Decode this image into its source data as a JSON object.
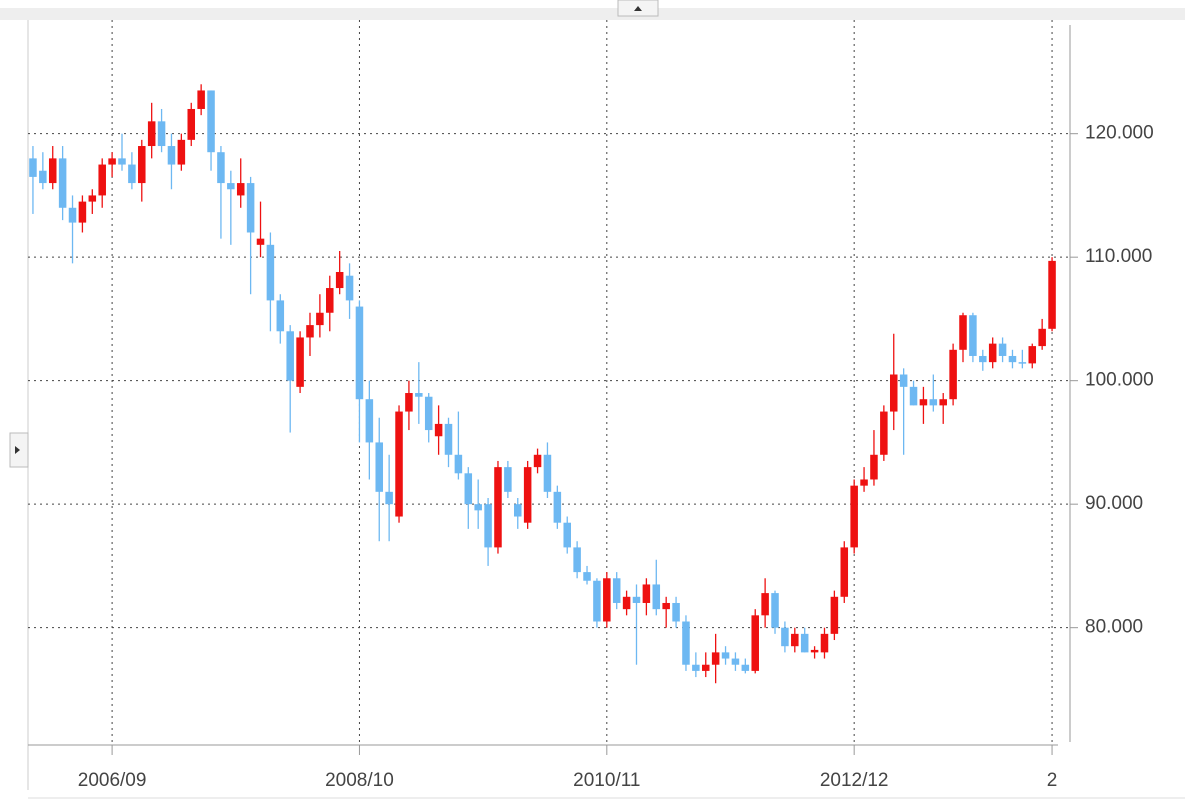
{
  "chart_data": {
    "type": "candlestick",
    "categories": [
      null,
      null,
      null,
      null,
      null,
      null,
      null,
      null,
      "2006/09",
      null,
      null,
      null,
      null,
      null,
      null,
      null,
      null,
      null,
      null,
      null,
      null,
      null,
      null,
      null,
      null,
      null,
      null,
      null,
      null,
      null,
      null,
      null,
      null,
      "2008/10",
      null,
      null,
      null,
      null,
      null,
      null,
      null,
      null,
      null,
      null,
      null,
      null,
      null,
      null,
      null,
      null,
      null,
      null,
      null,
      null,
      null,
      null,
      null,
      null,
      "2010/11",
      null,
      null,
      null,
      null,
      null,
      null,
      null,
      null,
      null,
      null,
      null,
      null,
      null,
      null,
      null,
      null,
      null,
      null,
      null,
      null,
      null,
      null,
      null,
      null,
      "2012/12",
      null,
      null,
      null,
      null,
      null,
      null,
      null,
      null,
      null,
      null,
      null,
      null,
      null,
      null,
      null,
      null,
      null,
      null,
      null,
      "2"
    ],
    "ohlc": [
      [
        118,
        119,
        113.5,
        116.5
      ],
      [
        117,
        118.5,
        115.5,
        116
      ],
      [
        116,
        119,
        115.5,
        118
      ],
      [
        118,
        119,
        113,
        114
      ],
      [
        114,
        115,
        109.5,
        112.8
      ],
      [
        112.8,
        115,
        112,
        114.5
      ],
      [
        114.5,
        115.5,
        113.5,
        115
      ],
      [
        115,
        118,
        114,
        117.5
      ],
      [
        117.5,
        118.5,
        116.5,
        118
      ],
      [
        118,
        120,
        117,
        117.5
      ],
      [
        117.5,
        118.5,
        115.5,
        116
      ],
      [
        116,
        119.5,
        114.5,
        119
      ],
      [
        119,
        122.5,
        118,
        121
      ],
      [
        121,
        122,
        118.5,
        119
      ],
      [
        119,
        120,
        115.5,
        117.5
      ],
      [
        117.5,
        120,
        117,
        119.5
      ],
      [
        119.5,
        122.5,
        119,
        122
      ],
      [
        122,
        124,
        121.5,
        123.5
      ],
      [
        123.5,
        123.5,
        117,
        118.5
      ],
      [
        118.5,
        119,
        111.5,
        116
      ],
      [
        116,
        117,
        111,
        115.5
      ],
      [
        115,
        118,
        114,
        116
      ],
      [
        116,
        116.5,
        107,
        112
      ],
      [
        111,
        114.5,
        110,
        111.5
      ],
      [
        111,
        112,
        104,
        106.5
      ],
      [
        106.5,
        107,
        103,
        104
      ],
      [
        104,
        104.5,
        95.8,
        100
      ],
      [
        99.5,
        104,
        99,
        103.5
      ],
      [
        103.5,
        105.5,
        102,
        104.5
      ],
      [
        104.5,
        107,
        103.5,
        105.5
      ],
      [
        105.5,
        108.5,
        104,
        107.5
      ],
      [
        107.5,
        110.5,
        107,
        108.8
      ],
      [
        108.5,
        109.5,
        105,
        106.5
      ],
      [
        106,
        106.5,
        95,
        98.5
      ],
      [
        98.5,
        100,
        92,
        95
      ],
      [
        95,
        97,
        87,
        91
      ],
      [
        91,
        94,
        87,
        90
      ],
      [
        89,
        98,
        88.5,
        97.5
      ],
      [
        97.5,
        100,
        96,
        99
      ],
      [
        99,
        101.5,
        96.5,
        98.7
      ],
      [
        98.7,
        99,
        95,
        96
      ],
      [
        95.5,
        98,
        94,
        96.5
      ],
      [
        96.5,
        97,
        93,
        94
      ],
      [
        94,
        97.5,
        92,
        92.5
      ],
      [
        92.5,
        93,
        88,
        90
      ],
      [
        90,
        92,
        88,
        89.5
      ],
      [
        90,
        90.5,
        85,
        86.5
      ],
      [
        86.5,
        93.5,
        86,
        93
      ],
      [
        93,
        93.5,
        90.5,
        91
      ],
      [
        90,
        90.5,
        88,
        89
      ],
      [
        88.5,
        93.5,
        88,
        93
      ],
      [
        93,
        94.5,
        92.5,
        94
      ],
      [
        94,
        95,
        90.5,
        91
      ],
      [
        91,
        91.5,
        88,
        88.5
      ],
      [
        88.5,
        89,
        86,
        86.5
      ],
      [
        86.5,
        87,
        84,
        84.5
      ],
      [
        84.5,
        85,
        83.5,
        83.8
      ],
      [
        83.8,
        84,
        80,
        80.5
      ],
      [
        80.5,
        84.5,
        80,
        84
      ],
      [
        84,
        84.5,
        81.5,
        82
      ],
      [
        81.5,
        83,
        81,
        82.5
      ],
      [
        82.5,
        83.5,
        77,
        82
      ],
      [
        82,
        84,
        81,
        83.5
      ],
      [
        83.5,
        85.5,
        81,
        81.5
      ],
      [
        81.5,
        82.5,
        80,
        82
      ],
      [
        82,
        82.5,
        80,
        80.5
      ],
      [
        80.5,
        81,
        76.5,
        77
      ],
      [
        77,
        78,
        76,
        76.5
      ],
      [
        76.5,
        78,
        76,
        77
      ],
      [
        77,
        79.5,
        75.5,
        78
      ],
      [
        78,
        78.5,
        77,
        77.5
      ],
      [
        77.5,
        78,
        76.5,
        77
      ],
      [
        77,
        77.5,
        76.3,
        76.5
      ],
      [
        76.5,
        81.5,
        76.3,
        81
      ],
      [
        81,
        84,
        80,
        82.8
      ],
      [
        82.8,
        83,
        79.5,
        80
      ],
      [
        80,
        80.5,
        78,
        78.5
      ],
      [
        78.5,
        80,
        78,
        79.5
      ],
      [
        79.5,
        80,
        78,
        78
      ],
      [
        78,
        78.5,
        77.5,
        78.2
      ],
      [
        78,
        80,
        77.5,
        79.5
      ],
      [
        79.5,
        83,
        79,
        82.5
      ],
      [
        82.5,
        87,
        82,
        86.5
      ],
      [
        86.5,
        92,
        86,
        91.5
      ],
      [
        91.5,
        93,
        91,
        92
      ],
      [
        92,
        96,
        91.5,
        94
      ],
      [
        94,
        98,
        93.5,
        97.5
      ],
      [
        97.5,
        103.8,
        96,
        100.5
      ],
      [
        100.5,
        101,
        94,
        99.5
      ],
      [
        99.5,
        100,
        98,
        98
      ],
      [
        98,
        99.5,
        96.5,
        98.5
      ],
      [
        98.5,
        100.5,
        97.5,
        98
      ],
      [
        98,
        99,
        96.5,
        98.5
      ],
      [
        98.5,
        103,
        98,
        102.5
      ],
      [
        102.5,
        105.5,
        101.5,
        105.3
      ],
      [
        105.3,
        105.5,
        101.5,
        102
      ],
      [
        102,
        102.5,
        100.8,
        101.5
      ],
      [
        101.5,
        103.5,
        101,
        103
      ],
      [
        103,
        103.5,
        101.5,
        102
      ],
      [
        102,
        102.5,
        101,
        101.5
      ],
      [
        101.5,
        102.5,
        101,
        101.4
      ],
      [
        101.4,
        103,
        101,
        102.8
      ],
      [
        102.8,
        105,
        102.5,
        104.2
      ],
      [
        104.2,
        110,
        104,
        109.7
      ]
    ],
    "up_color": "#ee1111",
    "down_color": "#6db8f2",
    "ylim": [
      70.5,
      128.8
    ],
    "yticks": [
      {
        "value": 80,
        "label": "80.000"
      },
      {
        "value": 90,
        "label": "90.000"
      },
      {
        "value": 100,
        "label": "100.000"
      },
      {
        "value": 110,
        "label": "110.000"
      },
      {
        "value": 120,
        "label": "120.000"
      }
    ],
    "grid": true
  }
}
